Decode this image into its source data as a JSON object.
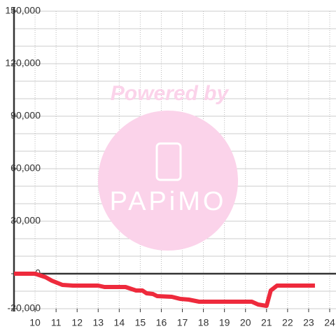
{
  "chart_data": {
    "type": "line",
    "watermark": {
      "title": "Powered by",
      "logo": "PAPiMO"
    },
    "x": [
      9,
      10,
      10.5,
      10.8,
      11.3,
      11.8,
      13,
      13.3,
      14.3,
      14.8,
      15.1,
      15.3,
      15.6,
      15.8,
      16.5,
      16.9,
      17.3,
      17.8,
      20.3,
      20.6,
      21.0,
      21.2,
      21.5,
      23.3
    ],
    "series": [
      {
        "color": "#ee2a3c",
        "values": [
          0,
          0,
          -2000,
          -4000,
          -6400,
          -6800,
          -6800,
          -7600,
          -7600,
          -9600,
          -9600,
          -11200,
          -11600,
          -12800,
          -13200,
          -14400,
          -14800,
          -16000,
          -16000,
          -17600,
          -18400,
          -9600,
          -6800,
          -6800
        ]
      }
    ],
    "xlim": [
      9,
      24.3
    ],
    "xticks": [
      10,
      11,
      12,
      13,
      14,
      15,
      16,
      17,
      18,
      19,
      20,
      21,
      22,
      23,
      24
    ],
    "ylim": [
      -20000,
      150000
    ],
    "yticks": [
      {
        "value": -20000,
        "label": "-20,000"
      },
      0,
      {
        "value": 30000,
        "label": "30,000"
      },
      {
        "value": 60000,
        "label": "60,000"
      },
      {
        "value": 90000,
        "label": "90,000"
      },
      {
        "value": 120000,
        "label": "120,000"
      },
      {
        "value": 150000,
        "label": "150,000"
      }
    ],
    "minor_yticks": [
      -10000,
      10000,
      20000,
      40000,
      50000,
      70000,
      80000,
      100000,
      110000,
      130000,
      140000
    ],
    "grid": true
  }
}
